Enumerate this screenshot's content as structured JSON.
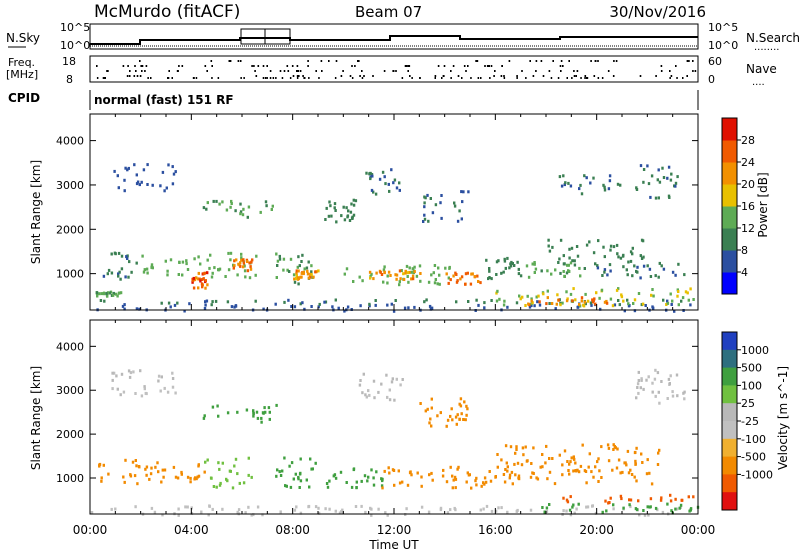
{
  "header": {
    "station": "McMurdo (fitACF)",
    "beam": "Beam 07",
    "date": "30/Nov/2016"
  },
  "top_panel": {
    "nsky_label": "N.Sky",
    "nsearch_label": "N.Search",
    "nsearch_dots": "........",
    "left_ticks": [
      "10^5",
      "10^0"
    ],
    "right_ticks": [
      "10^5",
      "10^0"
    ],
    "freq_label_1": "Freq.",
    "freq_label_2": "[MHz]",
    "freq_ticks": [
      "18",
      "8"
    ],
    "nave_label": "Nave",
    "nave_dots": "....",
    "nave_ticks": [
      "60",
      "0"
    ],
    "cpid_label": "CPID",
    "cpid_value": "normal (fast) 151 RF"
  },
  "colors": {
    "power": [
      "#0000ff",
      "#2b4fa0",
      "#3a7f52",
      "#5eab55",
      "#e8c000",
      "#f29000",
      "#f05a00",
      "#e01000"
    ],
    "velocity": [
      "#e01010",
      "#f05a00",
      "#f28a00",
      "#f0b030",
      "#c0c0c0",
      "#b8b8b8",
      "#70c040",
      "#3f9f3f",
      "#2e6f7f",
      "#2040c0"
    ]
  },
  "chart_data": [
    {
      "type": "heatmap",
      "name": "Power",
      "ylabel": "Slant Range [km]",
      "ylim": [
        180,
        4600
      ],
      "yticks": [
        "1000",
        "2000",
        "3000",
        "4000"
      ],
      "colorbar": {
        "label": "Power [dB]",
        "ticks": [
          "4",
          "8",
          "12",
          "16",
          "20",
          "24",
          "28"
        ],
        "range": [
          0,
          32
        ]
      },
      "blobs": [
        {
          "t0": 0.0,
          "t1": 24.0,
          "r0": 180,
          "r1": 330,
          "v": 6
        },
        {
          "t0": 0.0,
          "t1": 24.0,
          "r0": 330,
          "r1": 450,
          "v": 9
        },
        {
          "t0": 0.2,
          "t1": 1.2,
          "r0": 520,
          "r1": 620,
          "v": 13
        },
        {
          "t0": 0.5,
          "t1": 1.8,
          "r0": 900,
          "r1": 1500,
          "v": 9
        },
        {
          "t0": 2.0,
          "t1": 4.6,
          "r0": 1000,
          "r1": 1450,
          "v": 14
        },
        {
          "t0": 4.0,
          "t1": 4.6,
          "r0": 700,
          "r1": 1100,
          "v": 26
        },
        {
          "t0": 4.6,
          "t1": 6.6,
          "r0": 900,
          "r1": 1500,
          "v": 14
        },
        {
          "t0": 5.6,
          "t1": 6.4,
          "r0": 1100,
          "r1": 1350,
          "v": 24
        },
        {
          "t0": 4.4,
          "t1": 7.4,
          "r0": 2300,
          "r1": 2700,
          "v": 12
        },
        {
          "t0": 7.3,
          "t1": 8.8,
          "r0": 800,
          "r1": 1500,
          "v": 12
        },
        {
          "t0": 8.0,
          "t1": 9.0,
          "r0": 900,
          "r1": 1100,
          "v": 22
        },
        {
          "t0": 9.2,
          "t1": 10.5,
          "r0": 2200,
          "r1": 2700,
          "v": 10
        },
        {
          "t0": 10.0,
          "t1": 14.2,
          "r0": 750,
          "r1": 1250,
          "v": 14
        },
        {
          "t0": 11.0,
          "t1": 13.2,
          "r0": 900,
          "r1": 1100,
          "v": 22
        },
        {
          "t0": 14.0,
          "t1": 15.5,
          "r0": 750,
          "r1": 1050,
          "v": 24
        },
        {
          "t0": 13.0,
          "t1": 15.0,
          "r0": 2200,
          "r1": 2900,
          "v": 8
        },
        {
          "t0": 10.8,
          "t1": 12.2,
          "r0": 2800,
          "r1": 3400,
          "v": 8
        },
        {
          "t0": 15.5,
          "t1": 17.5,
          "r0": 900,
          "r1": 1400,
          "v": 10
        },
        {
          "t0": 17.0,
          "t1": 19.5,
          "r0": 900,
          "r1": 1300,
          "v": 13
        },
        {
          "t0": 16.0,
          "t1": 24.0,
          "r0": 300,
          "r1": 700,
          "v": 16
        },
        {
          "t0": 17.0,
          "t1": 20.5,
          "r0": 330,
          "r1": 500,
          "v": 24
        },
        {
          "t0": 18.0,
          "t1": 22.0,
          "r0": 1200,
          "r1": 1800,
          "v": 10
        },
        {
          "t0": 20.0,
          "t1": 23.5,
          "r0": 900,
          "r1": 1300,
          "v": 9
        },
        {
          "t0": 21.5,
          "t1": 23.2,
          "r0": 2700,
          "r1": 3500,
          "v": 9
        },
        {
          "t0": 0.8,
          "t1": 3.5,
          "r0": 2900,
          "r1": 3500,
          "v": 6
        },
        {
          "t0": 18.5,
          "t1": 21.0,
          "r0": 2800,
          "r1": 3300,
          "v": 8
        }
      ]
    },
    {
      "type": "heatmap",
      "name": "Velocity",
      "ylabel": "Slant Range [km]",
      "ylim": [
        180,
        4600
      ],
      "yticks": [
        "1000",
        "2000",
        "3000",
        "4000"
      ],
      "xlabel": "Time UT",
      "xlim": [
        0,
        24
      ],
      "xticks": [
        "00:00",
        "04:00",
        "08:00",
        "12:00",
        "16:00",
        "20:00",
        "00:00"
      ],
      "colorbar": {
        "label": "Velocity [m s^-1]",
        "ticks": [
          "1000",
          "500",
          "100",
          "25",
          "-25",
          "-100",
          "-500",
          "-1000"
        ]
      },
      "blobs": [
        {
          "t0": 0.0,
          "t1": 24.0,
          "r0": 180,
          "r1": 400,
          "v": -10
        },
        {
          "t0": 0.3,
          "t1": 4.5,
          "r0": 900,
          "r1": 1450,
          "v": -150
        },
        {
          "t0": 4.5,
          "t1": 6.5,
          "r0": 800,
          "r1": 1500,
          "v": 60
        },
        {
          "t0": 4.3,
          "t1": 7.4,
          "r0": 2300,
          "r1": 2700,
          "v": 300
        },
        {
          "t0": 7.2,
          "t1": 9.0,
          "r0": 800,
          "r1": 1500,
          "v": 200
        },
        {
          "t0": 9.2,
          "t1": 11.5,
          "r0": 800,
          "r1": 1250,
          "v": 150
        },
        {
          "t0": 11.5,
          "t1": 14.5,
          "r0": 800,
          "r1": 1300,
          "v": -200
        },
        {
          "t0": 14.0,
          "t1": 16.0,
          "r0": 800,
          "r1": 1200,
          "v": -400
        },
        {
          "t0": 16.0,
          "t1": 22.5,
          "r0": 900,
          "r1": 1800,
          "v": -300
        },
        {
          "t0": 17.5,
          "t1": 24.0,
          "r0": 220,
          "r1": 450,
          "v": 120
        },
        {
          "t0": 18.0,
          "t1": 24.0,
          "r0": 450,
          "r1": 650,
          "v": -600
        },
        {
          "t0": 21.5,
          "t1": 23.5,
          "r0": 2700,
          "r1": 3500,
          "v": 0
        },
        {
          "t0": 0.8,
          "t1": 3.5,
          "r0": 2900,
          "r1": 3500,
          "v": 0
        },
        {
          "t0": 10.5,
          "t1": 12.5,
          "r0": 2800,
          "r1": 3400,
          "v": 0
        },
        {
          "t0": 13.0,
          "t1": 15.0,
          "r0": 2200,
          "r1": 2900,
          "v": -120
        }
      ]
    }
  ]
}
